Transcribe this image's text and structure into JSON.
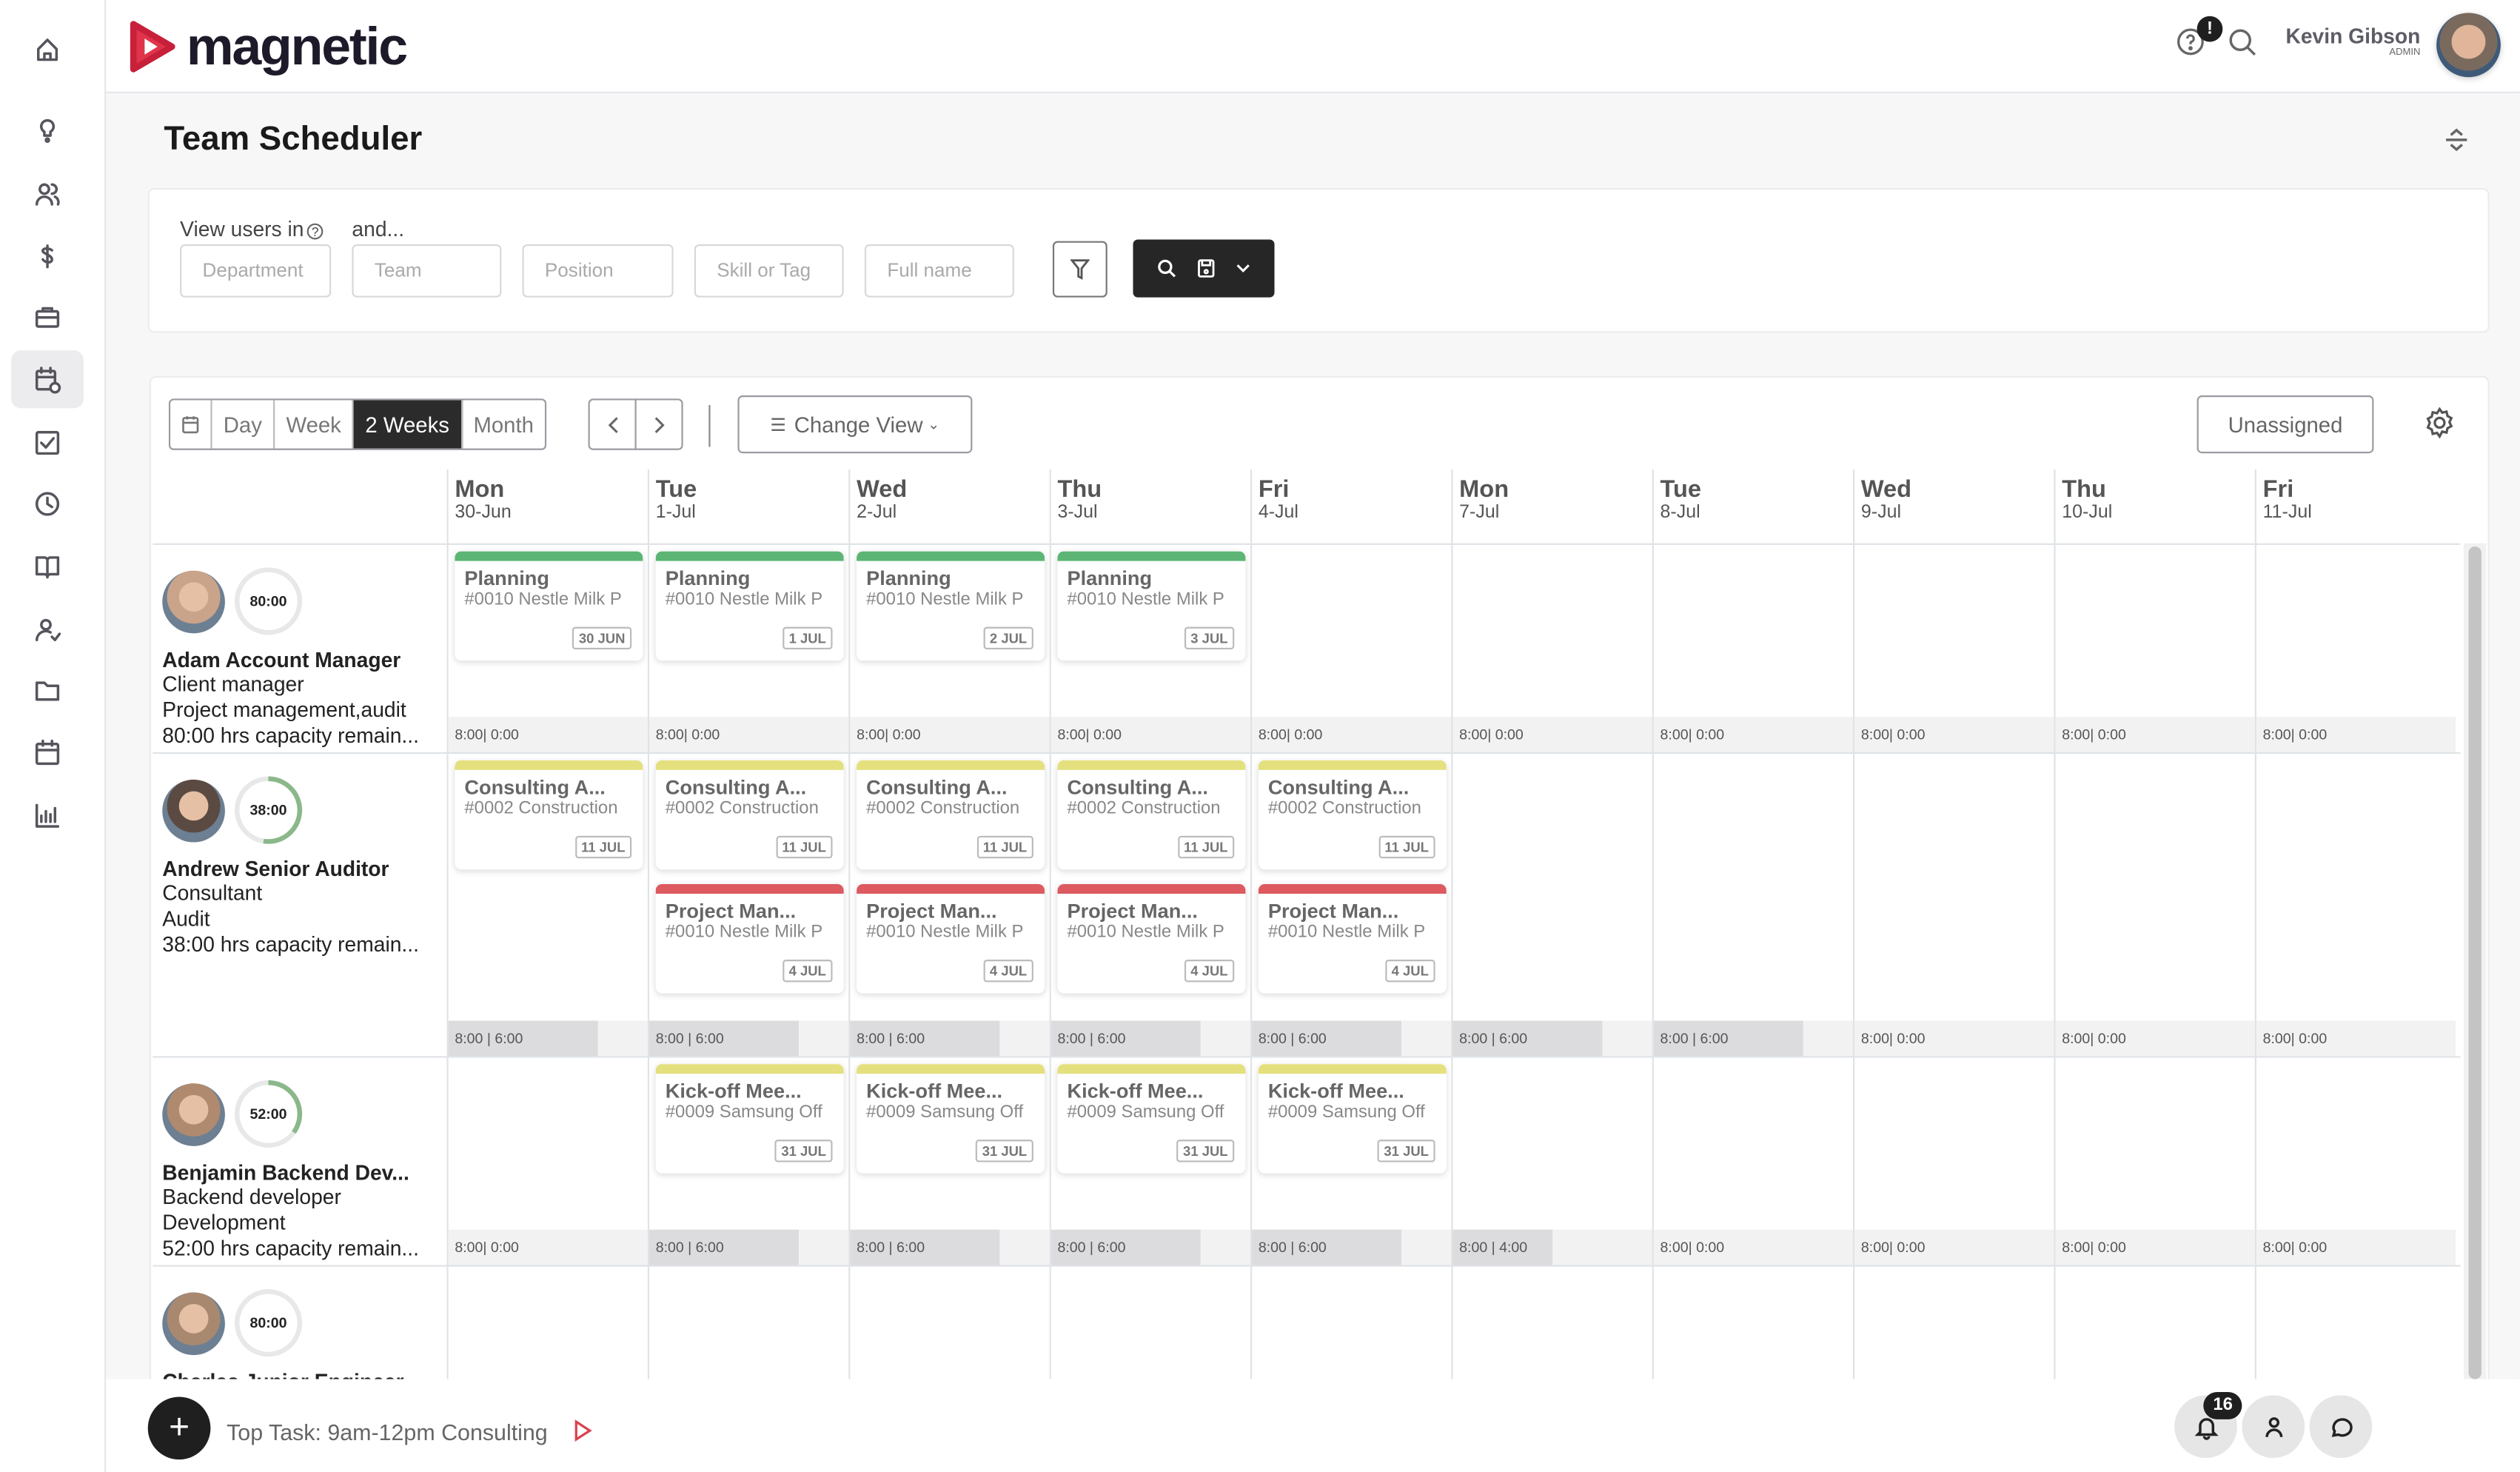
{
  "app": {
    "logo": "magnetic",
    "user_name": "Kevin Gibson",
    "user_role": "ADMIN",
    "help_badge": "!"
  },
  "sidebar": {
    "items": [
      "home",
      "lightbulb",
      "users",
      "dollar",
      "briefcase",
      "scheduler",
      "checkbox",
      "clock",
      "book",
      "user-check",
      "folder",
      "calendar",
      "chart"
    ],
    "active": 5
  },
  "page": {
    "title": "Team Scheduler"
  },
  "filters": {
    "view_users_in": "View users in",
    "and": "and...",
    "department": "Department",
    "team": "Team",
    "position": "Position",
    "skill": "Skill or Tag",
    "full_name": "Full name"
  },
  "toolbar": {
    "views": [
      "Day",
      "Week",
      "2 Weeks",
      "Month"
    ],
    "active_view": "2 Weeks",
    "change_view": "Change View",
    "unassigned": "Unassigned"
  },
  "days": [
    {
      "d": "Mon",
      "dt": "30-Jun"
    },
    {
      "d": "Tue",
      "dt": "1-Jul"
    },
    {
      "d": "Wed",
      "dt": "2-Jul"
    },
    {
      "d": "Thu",
      "dt": "3-Jul"
    },
    {
      "d": "Fri",
      "dt": "4-Jul"
    },
    {
      "d": "Mon",
      "dt": "7-Jul"
    },
    {
      "d": "Tue",
      "dt": "8-Jul"
    },
    {
      "d": "Wed",
      "dt": "9-Jul"
    },
    {
      "d": "Thu",
      "dt": "10-Jul"
    },
    {
      "d": "Fri",
      "dt": "11-Jul"
    }
  ],
  "colors": {
    "green": "#5cb574",
    "yellow": "#e4e07e",
    "red": "#dc5a60",
    "ring": "#8bb88a"
  },
  "people": [
    {
      "name": "Adam Account Manager",
      "role": "Client manager",
      "skills": "Project management,audit",
      "capacity": "80:00 hrs capacity remain...",
      "ring": "80:00",
      "used": 0,
      "avatar": "#c9a48a",
      "foot": [
        "8:00| 0:00",
        "8:00| 0:00",
        "8:00| 0:00",
        "8:00| 0:00",
        "8:00| 0:00",
        "8:00| 0:00",
        "8:00| 0:00",
        "8:00| 0:00",
        "8:00| 0:00",
        "8:00| 0:00"
      ],
      "fill": [
        0,
        0,
        0,
        0,
        0,
        0,
        0,
        0,
        0,
        0
      ],
      "events": [
        {
          "day": 0,
          "slot": 0,
          "color": "green",
          "title": "Planning",
          "sub": "#0010 Nestle Milk P",
          "date": "30 JUN"
        },
        {
          "day": 1,
          "slot": 0,
          "color": "green",
          "title": "Planning",
          "sub": "#0010 Nestle Milk P",
          "date": "1 JUL"
        },
        {
          "day": 2,
          "slot": 0,
          "color": "green",
          "title": "Planning",
          "sub": "#0010 Nestle Milk P",
          "date": "2 JUL"
        },
        {
          "day": 3,
          "slot": 0,
          "color": "green",
          "title": "Planning",
          "sub": "#0010 Nestle Milk P",
          "date": "3 JUL"
        }
      ]
    },
    {
      "name": "Andrew Senior Auditor",
      "role": "Consultant",
      "skills": "Audit",
      "capacity": "38:00 hrs capacity remain...",
      "ring": "38:00",
      "used": 0.525,
      "avatar": "#5a4a42",
      "foot": [
        "8:00 | 6:00",
        "8:00 | 6:00",
        "8:00 | 6:00",
        "8:00 | 6:00",
        "8:00 | 6:00",
        "8:00 | 6:00",
        "8:00 | 6:00",
        "8:00| 0:00",
        "8:00| 0:00",
        "8:00| 0:00"
      ],
      "fill": [
        0.75,
        0.75,
        0.75,
        0.75,
        0.75,
        0.75,
        0.75,
        0,
        0,
        0
      ],
      "events": [
        {
          "day": 0,
          "slot": 0,
          "color": "yellow",
          "title": "Consulting A...",
          "sub": "#0002 Construction",
          "date": "11 JUL"
        },
        {
          "day": 1,
          "slot": 0,
          "color": "yellow",
          "title": "Consulting A...",
          "sub": "#0002 Construction",
          "date": "11 JUL"
        },
        {
          "day": 2,
          "slot": 0,
          "color": "yellow",
          "title": "Consulting A...",
          "sub": "#0002 Construction",
          "date": "11 JUL"
        },
        {
          "day": 3,
          "slot": 0,
          "color": "yellow",
          "title": "Consulting A...",
          "sub": "#0002 Construction",
          "date": "11 JUL"
        },
        {
          "day": 4,
          "slot": 0,
          "color": "yellow",
          "title": "Consulting A...",
          "sub": "#0002 Construction",
          "date": "11 JUL"
        },
        {
          "day": 1,
          "slot": 1,
          "color": "red",
          "title": "Project Man...",
          "sub": "#0010 Nestle Milk P",
          "date": "4 JUL"
        },
        {
          "day": 2,
          "slot": 1,
          "color": "red",
          "title": "Project Man...",
          "sub": "#0010 Nestle Milk P",
          "date": "4 JUL"
        },
        {
          "day": 3,
          "slot": 1,
          "color": "red",
          "title": "Project Man...",
          "sub": "#0010 Nestle Milk P",
          "date": "4 JUL"
        },
        {
          "day": 4,
          "slot": 1,
          "color": "red",
          "title": "Project Man...",
          "sub": "#0010 Nestle Milk P",
          "date": "4 JUL"
        }
      ]
    },
    {
      "name": "Benjamin Backend Dev...",
      "role": "Backend developer",
      "skills": "Development",
      "capacity": "52:00 hrs capacity remain...",
      "ring": "52:00",
      "used": 0.35,
      "avatar": "#b08a6e",
      "foot": [
        "8:00| 0:00",
        "8:00 | 6:00",
        "8:00 | 6:00",
        "8:00 | 6:00",
        "8:00 | 6:00",
        "8:00 | 4:00",
        "8:00| 0:00",
        "8:00| 0:00",
        "8:00| 0:00",
        "8:00| 0:00"
      ],
      "fill": [
        0,
        0.75,
        0.75,
        0.75,
        0.75,
        0.5,
        0,
        0,
        0,
        0
      ],
      "events": [
        {
          "day": 1,
          "slot": 0,
          "color": "yellow",
          "title": "Kick-off Mee...",
          "sub": "#0009 Samsung Off",
          "date": "31 JUL"
        },
        {
          "day": 2,
          "slot": 0,
          "color": "yellow",
          "title": "Kick-off Mee...",
          "sub": "#0009 Samsung Off",
          "date": "31 JUL"
        },
        {
          "day": 3,
          "slot": 0,
          "color": "yellow",
          "title": "Kick-off Mee...",
          "sub": "#0009 Samsung Off",
          "date": "31 JUL"
        },
        {
          "day": 4,
          "slot": 0,
          "color": "yellow",
          "title": "Kick-off Mee...",
          "sub": "#0009 Samsung Off",
          "date": "31 JUL"
        }
      ]
    },
    {
      "name": "Charles Junior Engineer",
      "role": "",
      "skills": "",
      "capacity": "",
      "ring": "80:00",
      "used": 0,
      "avatar": "#a98870",
      "foot": [],
      "fill": [],
      "events": []
    }
  ],
  "bottom": {
    "top_task": "Top Task: 9am-12pm Consulting",
    "notif_count": "16"
  }
}
